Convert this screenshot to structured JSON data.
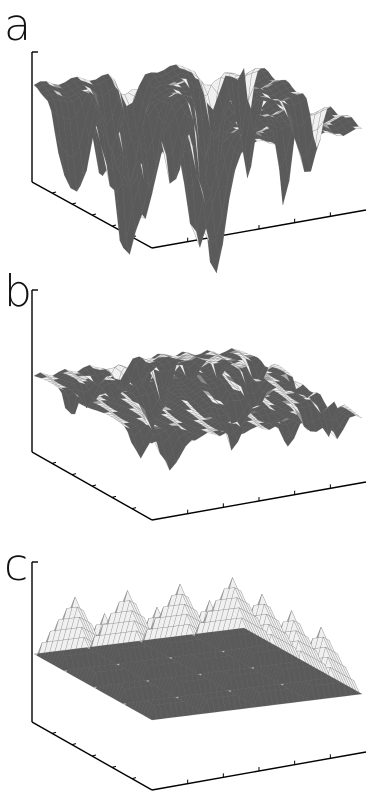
{
  "figure": {
    "panels": [
      {
        "id": "a",
        "label": "a",
        "surface": "rough-random-deep-pits"
      },
      {
        "id": "b",
        "label": "b",
        "surface": "rough-random-shallow"
      },
      {
        "id": "c",
        "label": "c",
        "surface": "periodic-pyramids"
      }
    ],
    "colors": {
      "axis": "#000000",
      "surface_light": "#e8e8e8",
      "surface_mid": "#b4b4b4",
      "surface_dark": "#5a5a5a",
      "background": "#ffffff"
    }
  }
}
